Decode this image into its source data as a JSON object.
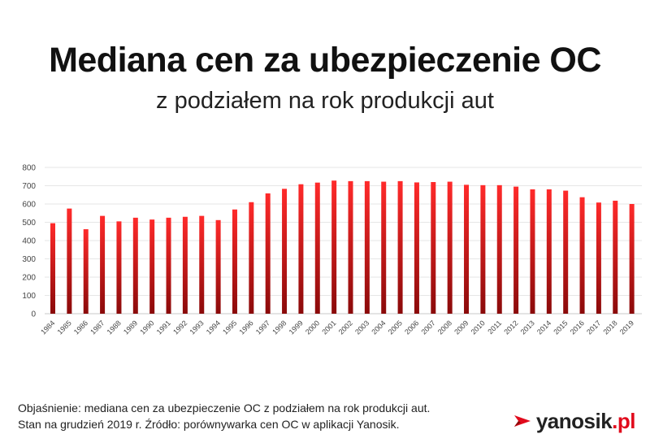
{
  "header": {
    "title": "Mediana cen za ubezpieczenie OC",
    "subtitle": "z podziałem na rok produkcji aut"
  },
  "footnote": {
    "line1": "Objaśnienie: mediana cen za ubezpieczenie OC z podziałem na rok produkcji aut.",
    "line2": "Stan na grudzień 2019 r. Źródło: porównywarka cen OC w aplikacji Yanosik."
  },
  "brand": {
    "name": "yanosik",
    "domain": ".pl",
    "icon": "yanosik-logo-icon",
    "color": "#e10a1c"
  },
  "chart_data": {
    "type": "bar",
    "categories": [
      "1984",
      "1985",
      "1986",
      "1987",
      "1988",
      "1989",
      "1990",
      "1991",
      "1992",
      "1993",
      "1994",
      "1995",
      "1996",
      "1997",
      "1998",
      "1999",
      "2000",
      "2001",
      "2002",
      "2003",
      "2004",
      "2005",
      "2006",
      "2007",
      "2008",
      "2009",
      "2010",
      "2011",
      "2012",
      "2013",
      "2014",
      "2015",
      "2016",
      "2017",
      "2018",
      "2019"
    ],
    "values": [
      495,
      575,
      462,
      535,
      505,
      525,
      515,
      525,
      530,
      535,
      512,
      570,
      610,
      658,
      683,
      708,
      717,
      728,
      725,
      725,
      722,
      725,
      718,
      720,
      722,
      705,
      703,
      703,
      695,
      680,
      680,
      673,
      637,
      608,
      618,
      600
    ],
    "xlabel": "",
    "ylabel": "",
    "ylim": [
      0,
      800
    ],
    "yticks": [
      0,
      100,
      200,
      300,
      400,
      500,
      600,
      700,
      800
    ],
    "grid": true,
    "bar_color_top": "#ff2a2a",
    "bar_color_bottom": "#8a0a0a"
  }
}
